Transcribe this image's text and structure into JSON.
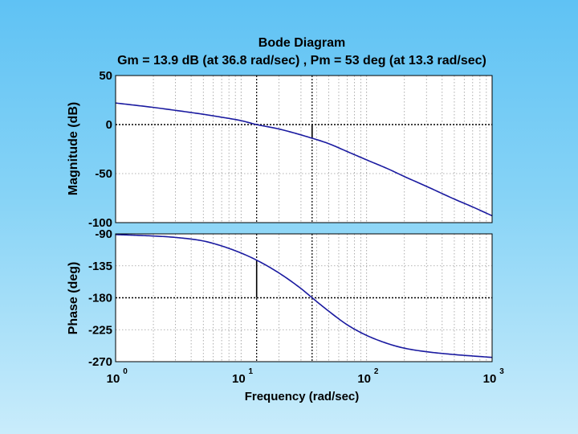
{
  "chart_data": {
    "type": "line",
    "title": "Bode Diagram",
    "subtitle": "Gm = 13.9 dB (at 36.8 rad/sec) ,  Pm = 53 deg (at 13.3 rad/sec)",
    "xlabel": "Frequency  (rad/sec)",
    "x_scale": "log",
    "xlim": [
      1,
      1000
    ],
    "x_ticks": [
      {
        "value": 1,
        "base": "10",
        "exp": "0"
      },
      {
        "value": 10,
        "base": "10",
        "exp": "1"
      },
      {
        "value": 100,
        "base": "10",
        "exp": "2"
      },
      {
        "value": 1000,
        "base": "10",
        "exp": "3"
      }
    ],
    "grid": true,
    "colors": {
      "curve": "#1a1aa0",
      "grid": "#9a9a9a",
      "marker": "#000000"
    },
    "panels": [
      {
        "name": "magnitude",
        "ylabel": "Magnitude (dB)",
        "ylim": [
          -100,
          50
        ],
        "y_ticks": [
          "50",
          "0",
          "-50",
          "-100"
        ],
        "y_tick_values": [
          50,
          0,
          -50,
          -100
        ],
        "series": {
          "x": [
            1,
            2,
            3,
            5,
            7,
            10,
            13.3,
            20,
            36.8,
            50,
            70,
            100,
            150,
            200,
            300,
            500,
            700,
            1000
          ],
          "y": [
            22,
            17.5,
            14.5,
            10.5,
            7.5,
            4,
            0,
            -4.5,
            -13.9,
            -19.5,
            -27.5,
            -36,
            -45.5,
            -53,
            -63,
            -76,
            -84,
            -93
          ]
        },
        "markers": [
          {
            "label": "Gm",
            "x": 36.8,
            "y_from": 0,
            "y_to": -13.9
          }
        ],
        "reference_line": 0
      },
      {
        "name": "phase",
        "ylabel": "Phase (deg)",
        "ylim": [
          -270,
          -90
        ],
        "y_ticks": [
          "-90",
          "-135",
          "-180",
          "-225",
          "-270"
        ],
        "y_tick_values": [
          -90,
          -135,
          -180,
          -225,
          -270
        ],
        "series": {
          "x": [
            1,
            2,
            3,
            5,
            7,
            10,
            13.3,
            20,
            30,
            36.8,
            50,
            70,
            100,
            150,
            200,
            300,
            500,
            700,
            1000
          ],
          "y": [
            -91,
            -93,
            -95,
            -100,
            -107,
            -117,
            -127,
            -145,
            -167,
            -180,
            -199,
            -218,
            -233,
            -245,
            -251,
            -256,
            -260,
            -262,
            -264
          ]
        },
        "markers": [
          {
            "label": "Pm",
            "x": 13.3,
            "y_from": -180,
            "y_to": -127
          }
        ],
        "reference_line": -180
      }
    ]
  }
}
